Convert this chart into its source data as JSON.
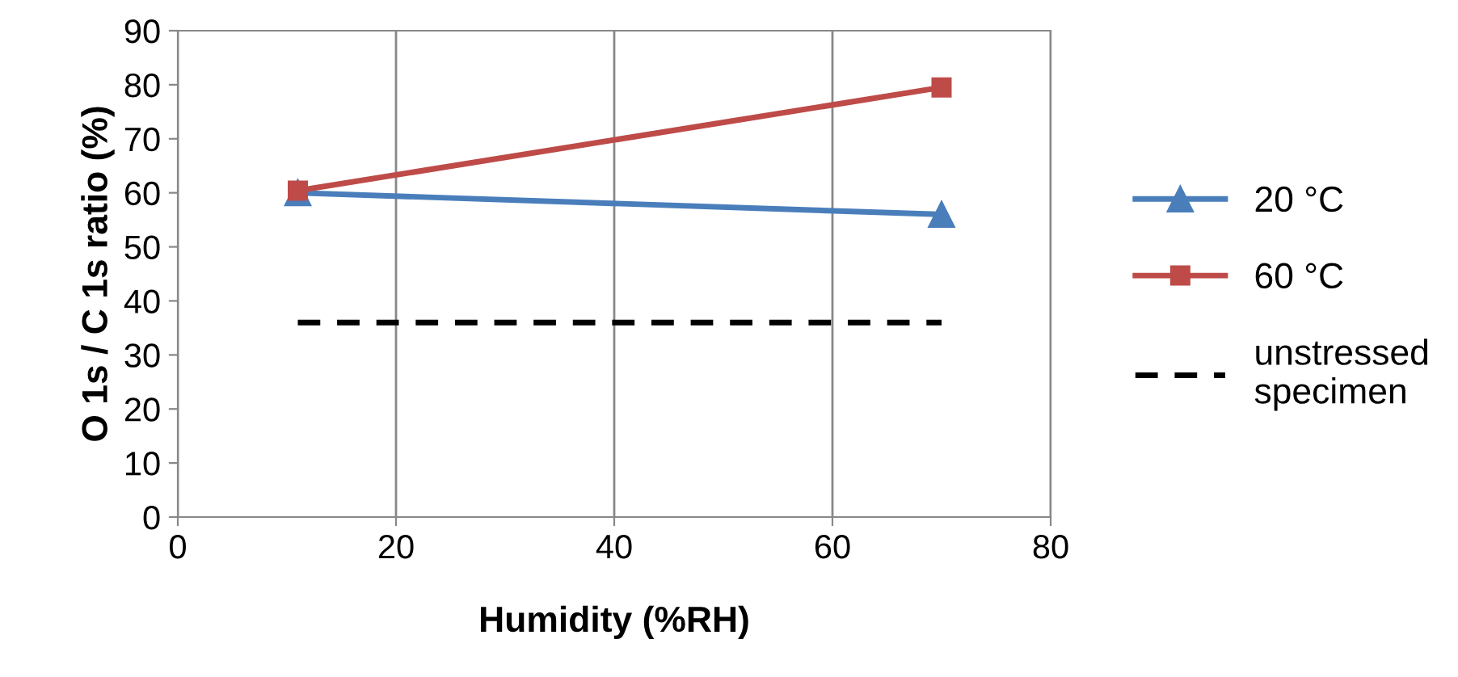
{
  "chart_data": {
    "type": "line",
    "xlabel": "Humidity (%RH)",
    "ylabel": "O 1s / C 1s ratio (%)",
    "x": [
      11,
      70
    ],
    "xlim": [
      0,
      80
    ],
    "xticks": [
      0,
      20,
      40,
      60,
      80
    ],
    "ylim": [
      0,
      90
    ],
    "yticks": [
      0,
      10,
      20,
      30,
      40,
      50,
      60,
      70,
      80,
      90
    ],
    "grid": "x",
    "legend": "right",
    "series": [
      {
        "name": "20 °C",
        "color": "#4a7ebb",
        "values": [
          60,
          56
        ],
        "marker": "triangle",
        "line_style": "solid"
      },
      {
        "name": "60 °C",
        "color": "#be4b48",
        "values": [
          60.4,
          79.5
        ],
        "marker": "square",
        "line_style": "solid"
      },
      {
        "name": "unstressed\nspecimen",
        "color": "#000000",
        "values": [
          36,
          36
        ],
        "marker": "none",
        "line_style": "dashed"
      }
    ]
  }
}
